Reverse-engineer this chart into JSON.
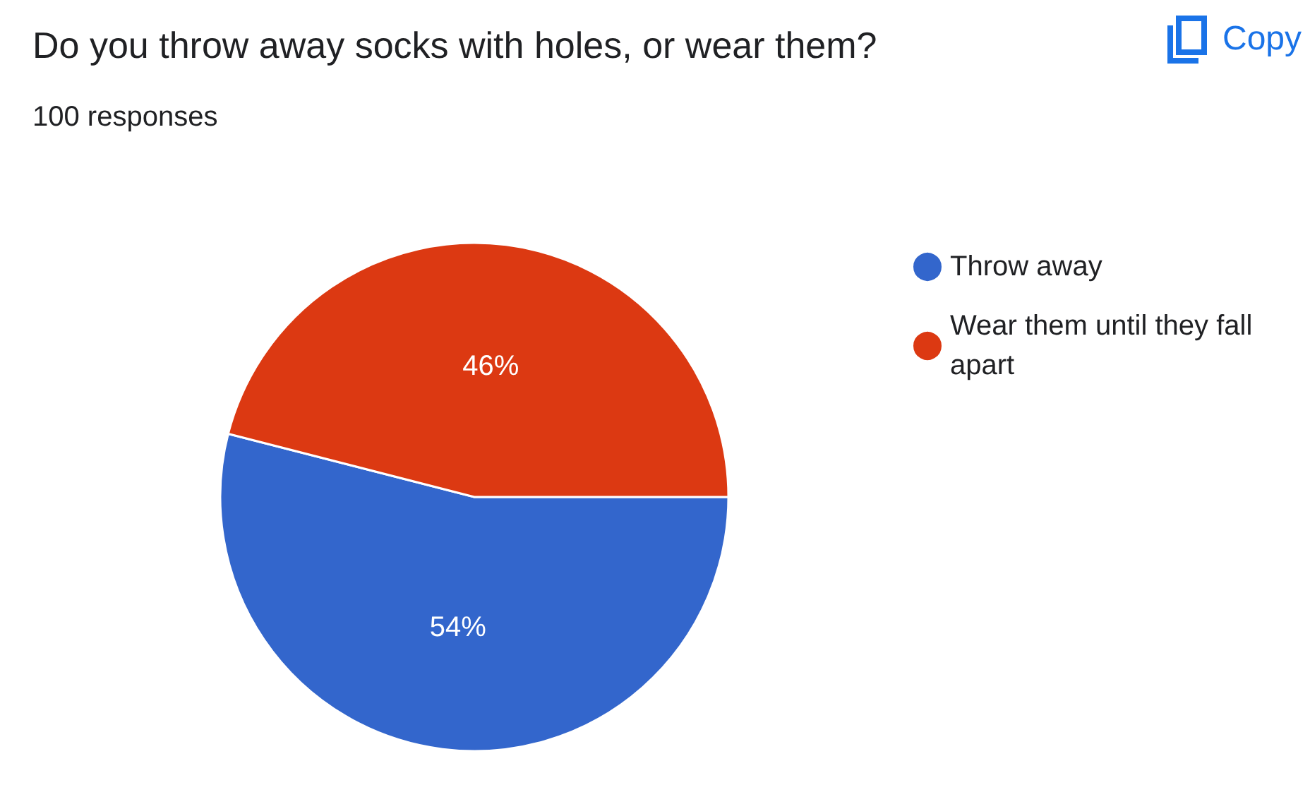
{
  "chart_data": {
    "type": "pie",
    "title": "Do you throw away socks with holes, or wear them?",
    "subtitle": "100 responses",
    "categories": [
      "Throw away",
      "Wear them until they fall apart"
    ],
    "values": [
      54,
      46
    ],
    "value_labels": [
      "54%",
      "46%"
    ],
    "colors": [
      "#3366cc",
      "#dc3912"
    ],
    "legend": "right",
    "annotations": [
      "Copy"
    ]
  }
}
